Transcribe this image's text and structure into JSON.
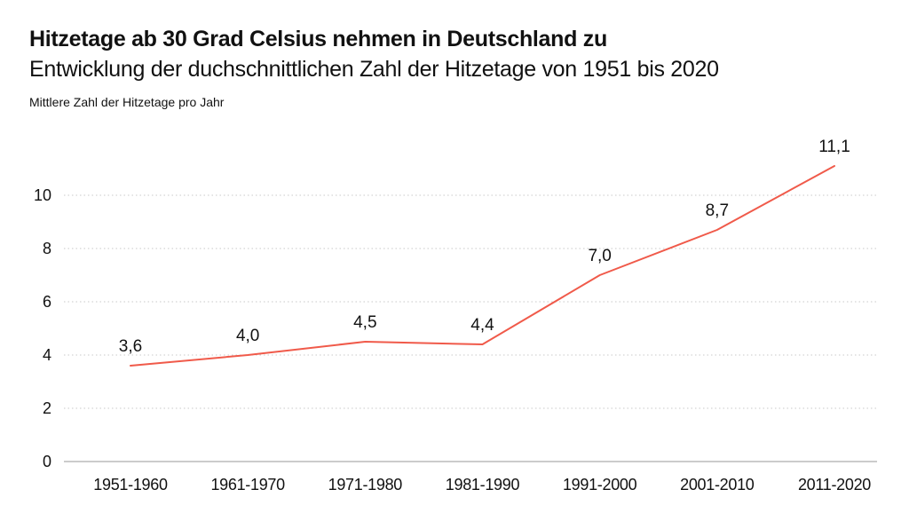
{
  "header": {
    "title": "Hitzetage ab 30 Grad Celsius nehmen in Deutschland zu",
    "subtitle": "Entwicklung der duchschnittlichen Zahl der Hitzetage von 1951 bis 2020",
    "axis_caption": "Mittlere Zahl der Hitzetage pro Jahr"
  },
  "chart_data": {
    "type": "line",
    "title": "Hitzetage ab 30 Grad Celsius nehmen in Deutschland zu",
    "subtitle": "Entwicklung der duchschnittlichen Zahl der Hitzetage von 1951 bis 2020",
    "ylabel": "Mittlere Zahl der Hitzetage pro Jahr",
    "xlabel": "",
    "categories": [
      "1951-1960",
      "1961-1970",
      "1971-1980",
      "1981-1990",
      "1991-2000",
      "2001-2010",
      "2011-2020"
    ],
    "values": [
      3.6,
      4.0,
      4.5,
      4.4,
      7.0,
      8.7,
      11.1
    ],
    "value_labels": [
      "3,6",
      "4,0",
      "4,5",
      "4,4",
      "7,0",
      "8,7",
      "11,1"
    ],
    "ylim": [
      0,
      12
    ],
    "yticks": [
      0,
      2,
      4,
      6,
      8,
      10
    ],
    "ytick_labels": [
      "0",
      "2",
      "4",
      "6",
      "8",
      "10"
    ],
    "grid": "horizontal dotted",
    "line_color": "#f05a4a",
    "grid_color": "#c8c8c8",
    "axis_color": "#9a9a9a"
  }
}
